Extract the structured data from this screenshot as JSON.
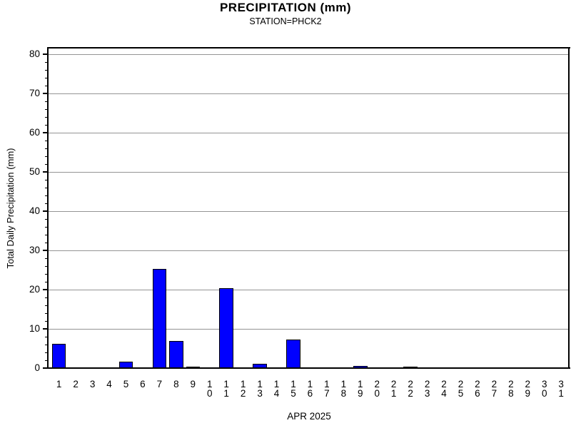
{
  "header": {
    "title": "PRECIPITATION (mm)",
    "subtitle": "STATION=PHCK2"
  },
  "chart_data": {
    "type": "bar",
    "title": "PRECIPITATION (mm)",
    "subtitle": "STATION=PHCK2",
    "xlabel": "APR 2025",
    "ylabel": "Total Daily Precipitation (mm)",
    "categories": [
      "1",
      "2",
      "3",
      "4",
      "5",
      "6",
      "7",
      "8",
      "9",
      "10",
      "11",
      "12",
      "13",
      "14",
      "15",
      "16",
      "17",
      "18",
      "19",
      "20",
      "21",
      "22",
      "23",
      "24",
      "25",
      "26",
      "27",
      "28",
      "29",
      "30",
      "31"
    ],
    "values": [
      6.1,
      0,
      0,
      0,
      1.6,
      0,
      25.2,
      7.0,
      0.3,
      0,
      20.3,
      0,
      1.1,
      0.2,
      7.3,
      0,
      0,
      0,
      0.6,
      0,
      0.2,
      0.4,
      0.2,
      0.2,
      0.2,
      0.2,
      0,
      0,
      0.2,
      0,
      0
    ],
    "ylim": [
      0,
      80
    ],
    "ytick_interval": 10,
    "yminor_interval": 2,
    "grid": "horizontal-major",
    "legend": "none",
    "bar_color": "#0000ff",
    "bar_border_color": "#000000",
    "gridline_color": "#949494",
    "axis_color": "#000000",
    "background_color": "#ffffff"
  }
}
